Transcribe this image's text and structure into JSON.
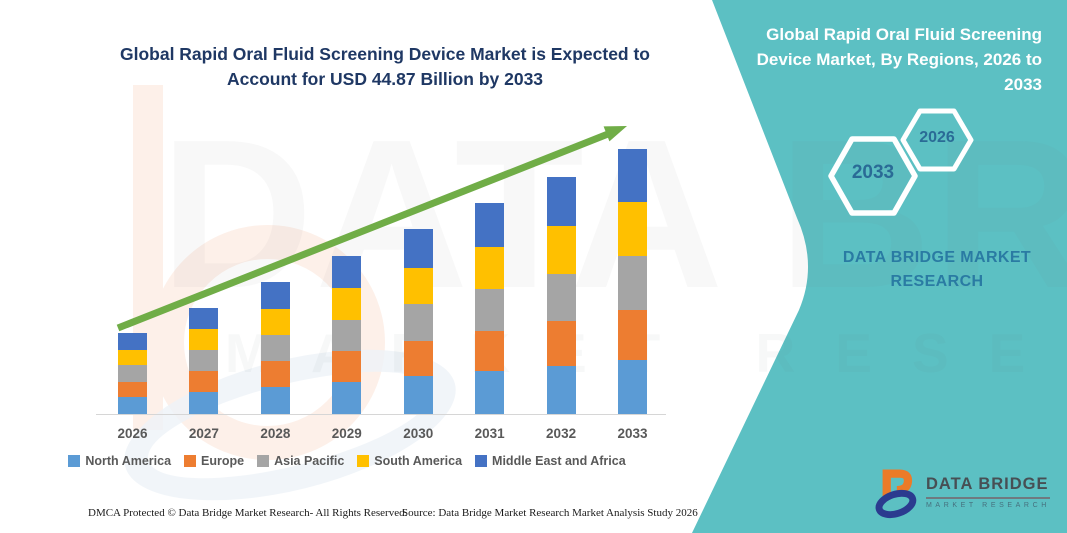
{
  "left_panel": {
    "title": "Global Rapid Oral Fluid Screening Device Market is Expected to\nAccount for USD 44.87 Billion by 2033"
  },
  "right_panel": {
    "title": "Global Rapid Oral Fluid Screening\nDevice Market, By Regions, 2026 to\n2033",
    "hex_badge_end_year": "2033",
    "hex_badge_start_year": "2026",
    "brand_name": "DATA BRIDGE MARKET\nRESEARCH"
  },
  "logo": {
    "title": "DATA BRIDGE",
    "subtitle": "MARKET RESEARCH"
  },
  "watermark": {
    "line1": "DATA BRIDGE",
    "line2": "MARKET RESEARCH"
  },
  "footer": {
    "dmca": "DMCA Protected © Data Bridge Market Research-  All Rights Reserved.",
    "source": "Source: Data Bridge Market Research  Market Analysis Study 2026"
  },
  "colors": {
    "teal_background": "#5cc0c3",
    "title_navy": "#1f3864",
    "arrow_green": "#70ad47",
    "axis_text_gray": "#595959",
    "hex_year_blue": "#2a6b96",
    "brand_caps_blue": "#2a7ba3",
    "logo_orange": "#ec7b28",
    "logo_navy": "#2b3b8f"
  },
  "chart_data": {
    "type": "bar",
    "stacked": true,
    "title": "Global Rapid Oral Fluid Screening Device Market is Expected to Account for USD 44.87 Billion by 2033",
    "subtitle": "Global Rapid Oral Fluid Screening Device Market, By Regions, 2026 to 2033",
    "unit": "USD Billion",
    "xlabel": "",
    "ylabel": "",
    "ylim": [
      0,
      45
    ],
    "grid": false,
    "legend_position": "bottom",
    "y_axis_visible": false,
    "annotations": [
      "green upward trend arrow from 2026 to 2033"
    ],
    "categories": [
      "2026",
      "2027",
      "2028",
      "2029",
      "2030",
      "2031",
      "2032",
      "2033"
    ],
    "series": [
      {
        "name": "North America",
        "color": "#5b9bd5",
        "values": [
          2.9,
          3.7,
          4.6,
          5.5,
          6.4,
          7.3,
          8.2,
          9.2
        ]
      },
      {
        "name": "Europe",
        "color": "#ed7d31",
        "values": [
          2.6,
          3.5,
          4.3,
          5.1,
          5.9,
          6.7,
          7.5,
          8.5
        ]
      },
      {
        "name": "Asia Pacific",
        "color": "#a5a5a5",
        "values": [
          2.8,
          3.6,
          4.5,
          5.4,
          6.3,
          7.2,
          8.1,
          9.1
        ]
      },
      {
        "name": "South America",
        "color": "#ffc000",
        "values": [
          2.6,
          3.5,
          4.4,
          5.3,
          6.2,
          7.1,
          8.0,
          9.1
        ]
      },
      {
        "name": "Middle East and Africa",
        "color": "#4472c4",
        "values": [
          2.8,
          3.7,
          4.6,
          5.5,
          6.5,
          7.4,
          8.4,
          8.97
        ]
      }
    ],
    "totals": [
      13.7,
      18.0,
      22.4,
      26.8,
      31.3,
      35.7,
      40.2,
      44.87
    ]
  }
}
